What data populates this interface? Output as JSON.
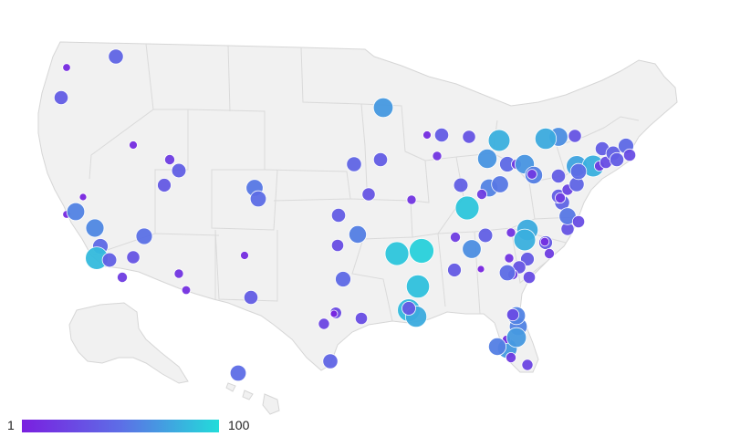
{
  "legend": {
    "min_label": "1",
    "max_label": "100",
    "color_min": "#7a1fe0",
    "color_mid": "#5d6ee6",
    "color_max": "#22dcda"
  },
  "markers": [
    {
      "v": 8
    },
    {
      "v": 45
    },
    {
      "v": 40
    },
    {
      "v": 10
    },
    {
      "v": 20
    },
    {
      "v": 42
    },
    {
      "v": 38
    },
    {
      "v": 55
    },
    {
      "v": 50
    },
    {
      "v": 5
    },
    {
      "v": 8
    },
    {
      "v": 60
    },
    {
      "v": 62
    },
    {
      "v": 48
    },
    {
      "v": 85
    },
    {
      "v": 42
    },
    {
      "v": 20
    },
    {
      "v": 35
    },
    {
      "v": 52
    },
    {
      "v": 15
    },
    {
      "v": 12
    },
    {
      "v": 10
    },
    {
      "v": 40
    },
    {
      "v": 25
    },
    {
      "v": 28
    },
    {
      "v": 30
    },
    {
      "v": 45
    },
    {
      "v": 48
    },
    {
      "v": 40
    },
    {
      "v": 58
    },
    {
      "v": 30
    },
    {
      "v": 35
    },
    {
      "v": 45
    },
    {
      "v": 40
    },
    {
      "v": 70
    },
    {
      "v": 15
    },
    {
      "v": 10
    },
    {
      "v": 15
    },
    {
      "v": 40
    },
    {
      "v": 90
    },
    {
      "v": 95
    },
    {
      "v": 88
    },
    {
      "v": 85
    },
    {
      "v": 78
    },
    {
      "v": 5
    },
    {
      "v": 20
    },
    {
      "v": 65
    },
    {
      "v": 38
    },
    {
      "v": 42
    },
    {
      "v": 90
    },
    {
      "v": 42
    },
    {
      "v": 60
    },
    {
      "v": 55
    },
    {
      "v": 68
    },
    {
      "v": 80
    },
    {
      "v": 35
    },
    {
      "v": 48
    },
    {
      "v": 20
    },
    {
      "v": 68
    },
    {
      "v": 58
    },
    {
      "v": 78
    },
    {
      "v": 80
    },
    {
      "v": 38
    },
    {
      "v": 35
    },
    {
      "v": 15
    },
    {
      "v": 20
    },
    {
      "v": 30
    },
    {
      "v": 50
    },
    {
      "v": 38
    },
    {
      "v": 15
    },
    {
      "v": 35
    },
    {
      "v": 45
    },
    {
      "v": 40
    },
    {
      "v": 25
    },
    {
      "v": 40
    },
    {
      "v": 45
    },
    {
      "v": 75
    },
    {
      "v": 80
    },
    {
      "v": 20
    },
    {
      "v": 30
    },
    {
      "v": 40
    },
    {
      "v": 42
    },
    {
      "v": 40
    },
    {
      "v": 48
    },
    {
      "v": 30
    },
    {
      "v": 35
    },
    {
      "v": 65
    },
    {
      "v": 78
    },
    {
      "v": 50
    },
    {
      "v": 55
    },
    {
      "v": 70
    },
    {
      "v": 60
    },
    {
      "v": 20
    },
    {
      "v": 25
    },
    {
      "v": 10
    },
    {
      "v": 70
    },
    {
      "v": 58
    },
    {
      "v": 60
    },
    {
      "v": 30
    },
    {
      "v": 12
    },
    {
      "v": 18
    },
    {
      "v": 20
    },
    {
      "v": 20
    },
    {
      "v": 30
    },
    {
      "v": 20
    },
    {
      "v": 5
    },
    {
      "v": 50
    },
    {
      "v": 38
    }
  ]
}
